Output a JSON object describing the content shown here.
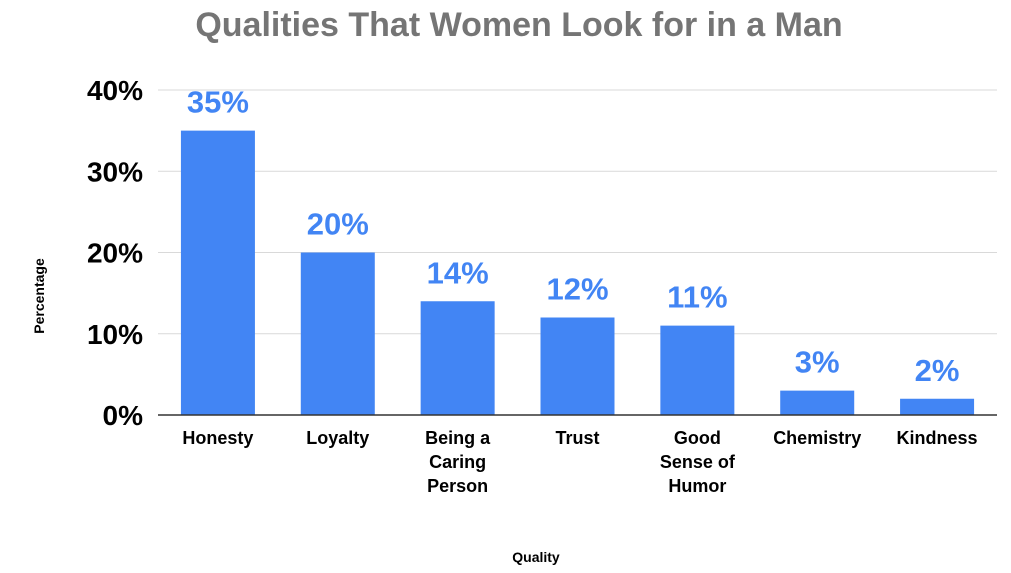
{
  "chart_data": {
    "type": "bar",
    "title": "Qualities That Women Look for in a Man",
    "xlabel": "Quality",
    "ylabel": "Percentage",
    "categories": [
      [
        "Honesty"
      ],
      [
        "Loyalty"
      ],
      [
        "Being a",
        "Caring",
        "Person"
      ],
      [
        "Trust"
      ],
      [
        "Good",
        "Sense of",
        "Humor"
      ],
      [
        "Chemistry"
      ],
      [
        "Kindness"
      ]
    ],
    "values": [
      35,
      20,
      14,
      12,
      11,
      3,
      2
    ],
    "data_labels": [
      "35%",
      "20%",
      "14%",
      "12%",
      "11%",
      "3%",
      "2%"
    ],
    "y_ticks": [
      {
        "value": 0,
        "label": "0%"
      },
      {
        "value": 10,
        "label": "10%"
      },
      {
        "value": 20,
        "label": "20%"
      },
      {
        "value": 30,
        "label": "30%"
      },
      {
        "value": 40,
        "label": "40%"
      }
    ],
    "ylim": [
      0,
      40
    ],
    "grid": true,
    "legend": "none",
    "colors": {
      "bar": "#4285f4",
      "data_label": "#4285f4",
      "title": "#757575",
      "gridline": "#d9d9d9"
    }
  }
}
